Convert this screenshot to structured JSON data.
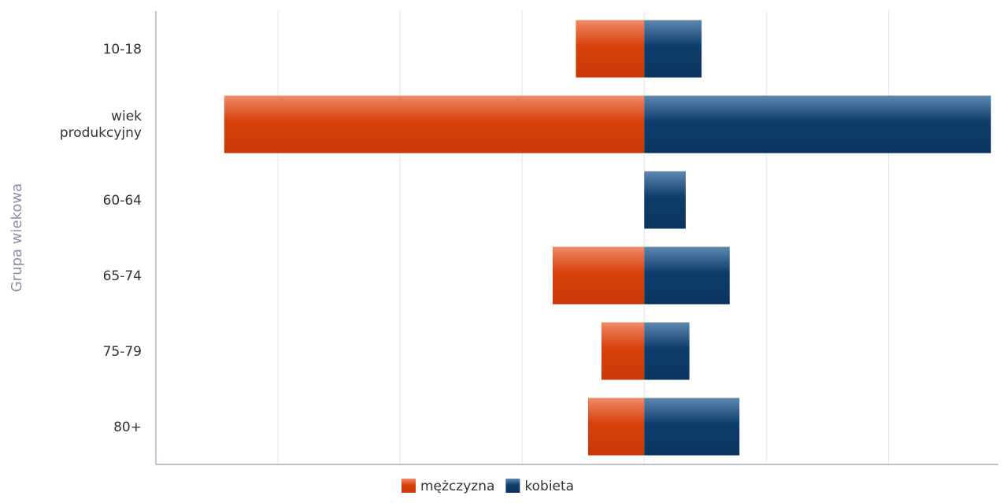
{
  "chart_data": {
    "type": "bar",
    "orientation": "horizontal",
    "stacked": "diverging",
    "categories": [
      "10-18",
      "wiek produkcyjny",
      "60-64",
      "65-74",
      "75-79",
      "80+"
    ],
    "series": [
      {
        "name": "mężczyzna",
        "values": [
          -28,
          -172,
          0,
          -37.5,
          -17.5,
          -23
        ],
        "color": "#d8400b"
      },
      {
        "name": "kobieta",
        "values": [
          23.5,
          142,
          17,
          35,
          18.5,
          39
        ],
        "color": "#0e3d6b"
      }
    ],
    "xlim": [
      -200,
      145
    ],
    "grid_step": 50,
    "ylabel": "Grupa wiekowa",
    "xlabel": "",
    "grid": "vertical",
    "legend_position": "bottom-center",
    "show_x_tick_labels": false
  }
}
